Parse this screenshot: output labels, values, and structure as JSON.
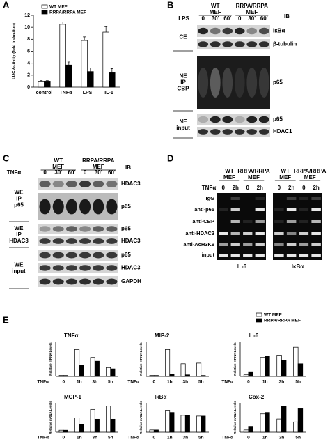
{
  "panel_labels": [
    "A",
    "B",
    "C",
    "D",
    "E"
  ],
  "chart_data": [
    {
      "type": "bar",
      "y_label": "LUC Activity (fold induction)",
      "categories": [
        "control",
        "TNFα",
        "LPS",
        "IL-1"
      ],
      "series": [
        {
          "name": "WT MEF",
          "color": "#ffffff",
          "values": [
            1,
            10.5,
            7.8,
            9.2
          ],
          "errors": [
            0.1,
            0.4,
            0.6,
            0.9
          ]
        },
        {
          "name": "RRPA/RRPA MEF",
          "color": "#000000",
          "values": [
            1,
            3.7,
            2.6,
            2.4
          ],
          "errors": [
            0.1,
            0.5,
            0.6,
            0.7
          ]
        }
      ],
      "ylim": [
        0,
        12
      ],
      "yticks": [
        0,
        2,
        4,
        6,
        8,
        10,
        12
      ]
    },
    {
      "type": "bar",
      "title": "TNFα",
      "x_label": "TNFα",
      "y_label": "Relative mRNA Levels",
      "categories": [
        "0",
        "1h",
        "3h",
        "5h"
      ],
      "series": [
        {
          "name": "WT MEF",
          "color": "#ffffff",
          "values": [
            0.3,
            8.5,
            6,
            2.8
          ]
        },
        {
          "name": "RRPA/RRPA MEF",
          "color": "#000000",
          "values": [
            0.3,
            3.5,
            4.8,
            2.4
          ]
        }
      ],
      "ylim": [
        0,
        11
      ]
    },
    {
      "type": "bar",
      "title": "MIP-2",
      "x_label": "TNFα",
      "y_label": "Relative mRNA Levels",
      "categories": [
        "0",
        "1h",
        "3h",
        "5h"
      ],
      "series": [
        {
          "color": "#ffffff",
          "values": [
            0.3,
            8.5,
            4,
            4.2
          ]
        },
        {
          "color": "#000000",
          "values": [
            0.3,
            0.8,
            0.5,
            0.3
          ]
        }
      ],
      "ylim": [
        0,
        11
      ]
    },
    {
      "type": "bar",
      "title": "IL-6",
      "x_label": "TNFα",
      "y_label": "Relative mRNA Levels",
      "categories": [
        "0",
        "1h",
        "3h",
        "5h"
      ],
      "series": [
        {
          "color": "#ffffff",
          "values": [
            0.5,
            6,
            6.5,
            9.2
          ]
        },
        {
          "color": "#000000",
          "values": [
            1.5,
            6.3,
            5.2,
            4
          ]
        }
      ],
      "ylim": [
        0,
        11
      ]
    },
    {
      "type": "bar",
      "title": "MCP-1",
      "x_label": "TNFα",
      "y_label": "Relative mRNA Levels",
      "categories": [
        "0",
        "1h",
        "3h",
        "5h"
      ],
      "series": [
        {
          "color": "#ffffff",
          "values": [
            0.3,
            2.2,
            3.5,
            4
          ]
        },
        {
          "color": "#000000",
          "values": [
            0.3,
            1.2,
            2,
            2
          ]
        }
      ],
      "ylim": [
        0,
        4.5
      ]
    },
    {
      "type": "bar",
      "title": "IκBα",
      "x_label": "TNFα",
      "y_label": "Relative mRNA Levels",
      "categories": [
        "0",
        "1h",
        "3h",
        "5h"
      ],
      "series": [
        {
          "color": "#ffffff",
          "values": [
            0.3,
            3,
            2.3,
            2.2
          ]
        },
        {
          "color": "#000000",
          "values": [
            0.3,
            2.7,
            2.3,
            2.2
          ]
        }
      ],
      "ylim": [
        0,
        4
      ]
    },
    {
      "type": "bar",
      "title": "Cox-2",
      "x_label": "TNFα",
      "y_label": "Relative mRNA Levels",
      "categories": [
        "0",
        "1h",
        "3h",
        "5h"
      ],
      "series": [
        {
          "color": "#ffffff",
          "values": [
            0.3,
            2.5,
            1.8,
            1.4
          ]
        },
        {
          "color": "#000000",
          "values": [
            0.8,
            2.7,
            3.5,
            3.2
          ]
        }
      ],
      "ylim": [
        0,
        4
      ]
    }
  ],
  "blot_b": {
    "treatment": "LPS",
    "ib": "IB",
    "groups": [
      [
        "WT",
        "MEF"
      ],
      [
        "RRPA/RRPA",
        "MEF"
      ]
    ],
    "lanes": [
      "0",
      "30'",
      "60'",
      "0",
      "30'",
      "60'"
    ],
    "sections": [
      {
        "label": [
          "CE"
        ],
        "rows": [
          "IκBα",
          "β-tubulin"
        ]
      },
      {
        "label": [
          "NE",
          "IP",
          "CBP"
        ],
        "rows": [
          "p65"
        ]
      },
      {
        "label": [
          "NE",
          "input"
        ],
        "rows": [
          "p65",
          "HDAC1"
        ]
      }
    ]
  },
  "blot_c": {
    "treatment": "TNFα",
    "ib": "IB",
    "groups": [
      [
        "WT",
        "MEF"
      ],
      [
        "RRPA/RRPA",
        "MEF"
      ]
    ],
    "lanes": [
      "0",
      "30'",
      "60'",
      "0",
      "30'",
      "60'"
    ],
    "sections": [
      {
        "label": [
          "WE",
          "IP",
          "p65"
        ],
        "rows": [
          "HDAC3",
          "p65"
        ]
      },
      {
        "label": [
          "WE",
          "IP",
          "HDAC3"
        ],
        "rows": [
          "p65",
          "HDAC3"
        ]
      },
      {
        "label": [
          "WE",
          "input"
        ],
        "rows": [
          "p65",
          "HDAC3",
          "GAPDH"
        ]
      }
    ]
  },
  "gel_d": {
    "treatment": "TNFα",
    "rows": [
      "IgG",
      "anti-p65",
      "anti-CBP",
      "anti-HDAC3",
      "anti-AcH3K9",
      "input"
    ],
    "gels": [
      {
        "label": "IL-6",
        "groups": [
          [
            "WT",
            "MEF"
          ],
          [
            "RRPA/RRPA",
            "MEF"
          ]
        ],
        "lanes": [
          "0",
          "2h",
          "0",
          "2h"
        ]
      },
      {
        "label": "IκBα",
        "groups": [
          [
            "WT",
            "MEF"
          ],
          [
            "RRPA/RRPA",
            "MEF"
          ]
        ],
        "lanes": [
          "0",
          "2h",
          "0",
          "2h"
        ]
      }
    ]
  }
}
